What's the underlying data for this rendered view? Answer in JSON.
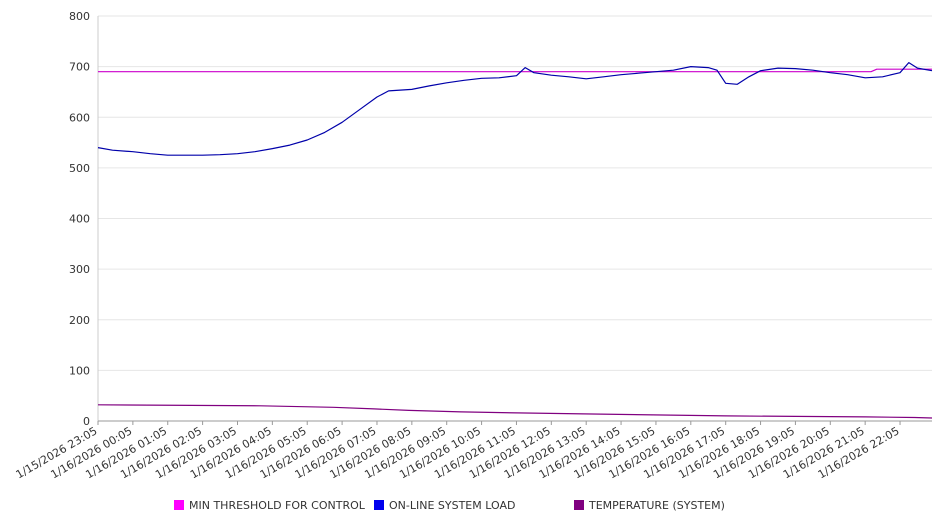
{
  "chart_data": {
    "type": "line",
    "ylim": [
      0,
      800
    ],
    "y_ticks": [
      0,
      100,
      200,
      300,
      400,
      500,
      600,
      700,
      800
    ],
    "grid": true,
    "legend_placement": "bottom",
    "x_tick_labels": [
      "1/15/2026 23:05",
      "1/16/2026 00:05",
      "1/16/2026 01:05",
      "1/16/2026 02:05",
      "1/16/2026 03:05",
      "1/16/2026 04:05",
      "1/16/2026 05:05",
      "1/16/2026 06:05",
      "1/16/2026 07:05",
      "1/16/2026 08:05",
      "1/16/2026 09:05",
      "1/16/2026 10:05",
      "1/16/2026 11:05",
      "1/16/2026 12:05",
      "1/16/2026 13:05",
      "1/16/2026 14:05",
      "1/16/2026 15:05",
      "1/16/2026 16:05",
      "1/16/2026 17:05",
      "1/16/2026 18:05",
      "1/16/2026 19:05",
      "1/16/2026 20:05",
      "1/16/2026 21:05",
      "1/16/2026 22:05"
    ],
    "series": [
      {
        "name": "MIN THRESHOLD FOR CONTROL",
        "color": "#cc00cc",
        "points": [
          [
            "1/15/2026 23:05",
            690
          ],
          [
            "1/16/2026 21:15",
            690
          ],
          [
            "1/16/2026 21:25",
            695
          ],
          [
            "1/16/2026 23:00",
            695
          ]
        ]
      },
      {
        "name": "ON-LINE SYSTEM LOAD",
        "color": "#0000aa",
        "points": [
          [
            "1/15/2026 23:05",
            540
          ],
          [
            "1/15/2026 23:30",
            535
          ],
          [
            "1/16/2026 00:05",
            532
          ],
          [
            "1/16/2026 00:35",
            528
          ],
          [
            "1/16/2026 01:05",
            525
          ],
          [
            "1/16/2026 01:35",
            525
          ],
          [
            "1/16/2026 02:05",
            525
          ],
          [
            "1/16/2026 02:35",
            526
          ],
          [
            "1/16/2026 03:05",
            528
          ],
          [
            "1/16/2026 03:35",
            532
          ],
          [
            "1/16/2026 04:05",
            538
          ],
          [
            "1/16/2026 04:35",
            545
          ],
          [
            "1/16/2026 05:05",
            555
          ],
          [
            "1/16/2026 05:35",
            570
          ],
          [
            "1/16/2026 06:05",
            590
          ],
          [
            "1/16/2026 06:35",
            615
          ],
          [
            "1/16/2026 07:05",
            640
          ],
          [
            "1/16/2026 07:25",
            652
          ],
          [
            "1/16/2026 08:05",
            655
          ],
          [
            "1/16/2026 08:35",
            662
          ],
          [
            "1/16/2026 09:05",
            668
          ],
          [
            "1/16/2026 09:35",
            673
          ],
          [
            "1/16/2026 10:05",
            677
          ],
          [
            "1/16/2026 10:35",
            678
          ],
          [
            "1/16/2026 11:05",
            682
          ],
          [
            "1/16/2026 11:20",
            698
          ],
          [
            "1/16/2026 11:35",
            688
          ],
          [
            "1/16/2026 12:05",
            683
          ],
          [
            "1/16/2026 12:35",
            680
          ],
          [
            "1/16/2026 13:05",
            676
          ],
          [
            "1/16/2026 13:35",
            680
          ],
          [
            "1/16/2026 14:05",
            684
          ],
          [
            "1/16/2026 14:35",
            687
          ],
          [
            "1/16/2026 15:05",
            690
          ],
          [
            "1/16/2026 15:35",
            693
          ],
          [
            "1/16/2026 16:05",
            700
          ],
          [
            "1/16/2026 16:35",
            698
          ],
          [
            "1/16/2026 16:50",
            693
          ],
          [
            "1/16/2026 17:05",
            667
          ],
          [
            "1/16/2026 17:25",
            665
          ],
          [
            "1/16/2026 17:45",
            680
          ],
          [
            "1/16/2026 18:05",
            692
          ],
          [
            "1/16/2026 18:35",
            697
          ],
          [
            "1/16/2026 19:05",
            696
          ],
          [
            "1/16/2026 19:35",
            693
          ],
          [
            "1/16/2026 20:05",
            688
          ],
          [
            "1/16/2026 20:35",
            684
          ],
          [
            "1/16/2026 21:05",
            678
          ],
          [
            "1/16/2026 21:35",
            680
          ],
          [
            "1/16/2026 22:05",
            688
          ],
          [
            "1/16/2026 22:20",
            708
          ],
          [
            "1/16/2026 22:35",
            697
          ],
          [
            "1/16/2026 23:00",
            692
          ]
        ]
      },
      {
        "name": "TEMPERATURE (SYSTEM)",
        "color": "#800080",
        "points": [
          [
            "1/15/2026 23:05",
            32
          ],
          [
            "1/16/2026 03:45",
            30
          ],
          [
            "1/16/2026 05:50",
            27
          ],
          [
            "1/16/2026 07:00",
            24
          ],
          [
            "1/16/2026 08:00",
            21
          ],
          [
            "1/16/2026 09:30",
            18
          ],
          [
            "1/16/2026 11:05",
            16
          ],
          [
            "1/16/2026 13:00",
            14
          ],
          [
            "1/16/2026 15:00",
            12
          ],
          [
            "1/16/2026 17:05",
            10
          ],
          [
            "1/16/2026 19:05",
            9
          ],
          [
            "1/16/2026 21:05",
            8
          ],
          [
            "1/16/2026 22:30",
            7
          ],
          [
            "1/16/2026 23:00",
            6
          ]
        ]
      }
    ]
  }
}
